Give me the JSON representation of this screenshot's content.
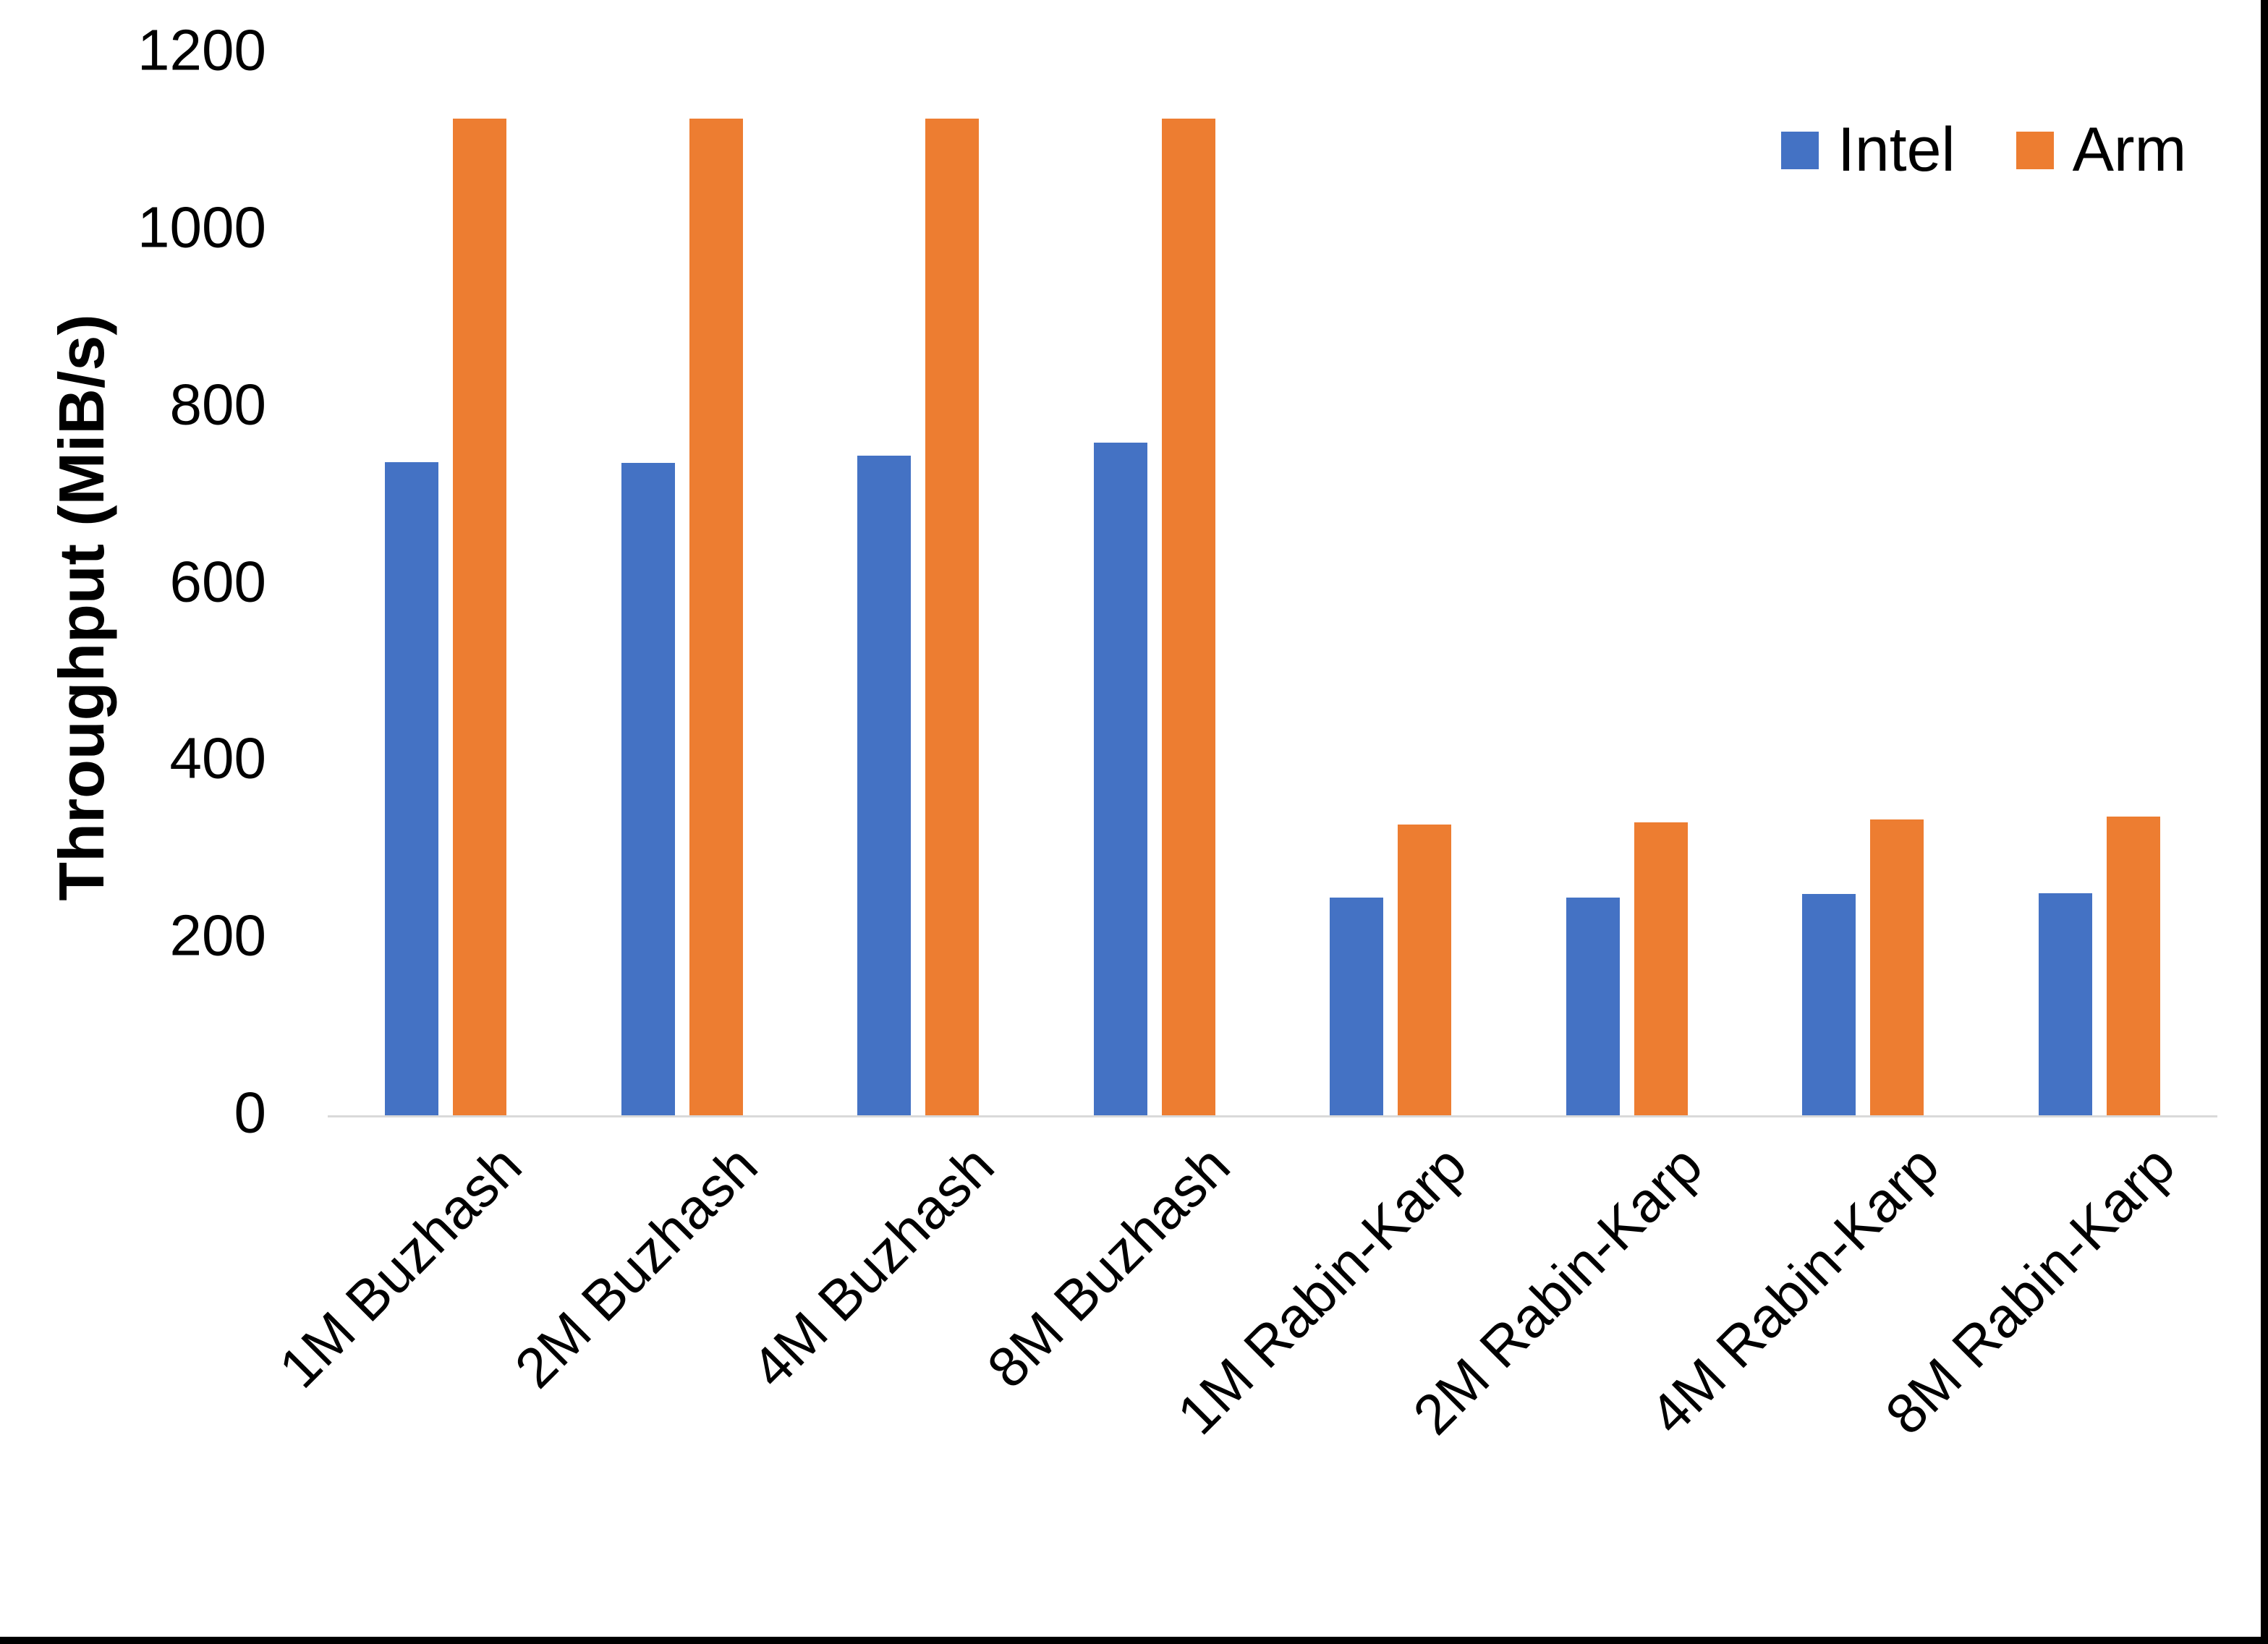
{
  "chart_data": {
    "type": "bar",
    "title": "",
    "xlabel": "",
    "ylabel": "Throughput (MiB/s)",
    "ylim": [
      0,
      1200
    ],
    "yticks": [
      0,
      200,
      400,
      600,
      800,
      1000,
      1200
    ],
    "grid": false,
    "legend_position": "top-right",
    "background": "#ffffff",
    "baseline_color": "#d9d9d9",
    "categories": [
      "1M Buzhash",
      "2M Buzhash",
      "4M Buzhash",
      "8M Buzhash",
      "1M Rabin-Karp",
      "2M Rabin-Karp",
      "4M Rabin-Karp",
      "8M Rabin-Karp"
    ],
    "series": [
      {
        "name": "Intel",
        "color": "#4472C4",
        "values": [
          738,
          737,
          745,
          760,
          246,
          246,
          250,
          251
        ]
      },
      {
        "name": "Arm",
        "color": "#ED7D31",
        "values": [
          1126,
          1126,
          1126,
          1126,
          328,
          331,
          334,
          337
        ]
      }
    ]
  }
}
